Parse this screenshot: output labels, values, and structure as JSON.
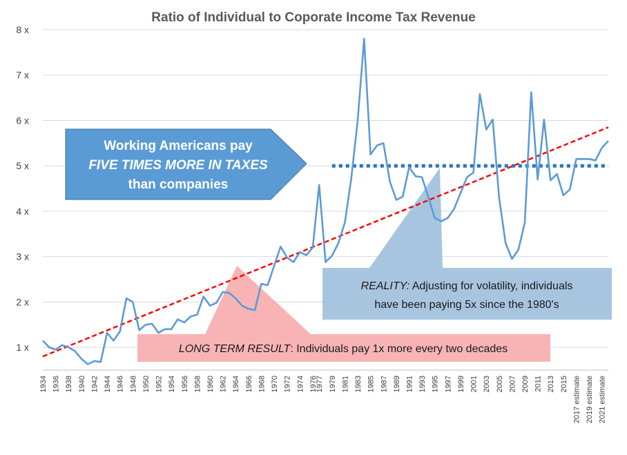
{
  "chart_data": {
    "type": "line",
    "title": "Ratio of Individual to Coporate Income Tax Revenue",
    "xlabel": "",
    "ylabel": "",
    "ylim": [
      0.5,
      8
    ],
    "yticks": [
      {
        "value": 1,
        "label": "1 x"
      },
      {
        "value": 2,
        "label": "2 x"
      },
      {
        "value": 3,
        "label": "3 x"
      },
      {
        "value": 4,
        "label": "4 x"
      },
      {
        "value": 5,
        "label": "5 x"
      },
      {
        "value": 6,
        "label": "6 x"
      },
      {
        "value": 7,
        "label": "7 x"
      },
      {
        "value": 8,
        "label": "8 x"
      }
    ],
    "grid": true,
    "categories": [
      "1934",
      "1935",
      "1936",
      "1937",
      "1938",
      "1939",
      "1940",
      "1941",
      "1942",
      "1943",
      "1944",
      "1945",
      "1946",
      "1947",
      "1948",
      "1949",
      "1950",
      "1951",
      "1952",
      "1953",
      "1954",
      "1955",
      "1956",
      "1957",
      "1958",
      "1959",
      "1960",
      "1961",
      "1962",
      "1963",
      "1964",
      "1965",
      "1966",
      "1967",
      "1968",
      "1969",
      "1970",
      "1971",
      "1972",
      "1973",
      "1974",
      "1975",
      "1976",
      "1977",
      "1978",
      "1979",
      "1980",
      "1981",
      "1982",
      "1983",
      "1984",
      "1985",
      "1986",
      "1987",
      "1988",
      "1989",
      "1990",
      "1991",
      "1992",
      "1993",
      "1994",
      "1995",
      "1996",
      "1997",
      "1998",
      "1999",
      "2000",
      "2001",
      "2002",
      "2003",
      "2004",
      "2005",
      "2006",
      "2007",
      "2008",
      "2009",
      "2010",
      "2011",
      "2012",
      "2013",
      "2014",
      "2015",
      "2016",
      "2017 estimate",
      "2018 estimate",
      "2019 estimate",
      "2020 estimate",
      "2021 estimate",
      "2022 estimate"
    ],
    "tick_labels": [
      "1934",
      "1936",
      "1938",
      "1940",
      "1942",
      "1944",
      "1946",
      "1948",
      "1950",
      "1952",
      "1954",
      "1956",
      "1958",
      "1960",
      "1962",
      "1964",
      "1966",
      "1968",
      "1970",
      "1972",
      "1974",
      "1976",
      "1977",
      "1979",
      "1981",
      "1983",
      "1985",
      "1987",
      "1989",
      "1991",
      "1993",
      "1995",
      "1997",
      "1999",
      "2001",
      "2003",
      "2005",
      "2007",
      "2009",
      "2011",
      "2013",
      "2015",
      "2017 estimate",
      "2019 estimate",
      "2021 estimate"
    ],
    "series": [
      {
        "name": "",
        "color": "#5b9bd5",
        "values": [
          1.15,
          1.0,
          0.95,
          1.05,
          1.0,
          0.92,
          0.75,
          0.63,
          0.7,
          0.68,
          1.32,
          1.15,
          1.35,
          2.08,
          2.0,
          1.38,
          1.5,
          1.52,
          1.32,
          1.4,
          1.4,
          1.62,
          1.55,
          1.68,
          1.72,
          2.12,
          1.92,
          1.98,
          2.22,
          2.2,
          2.08,
          1.92,
          1.85,
          1.82,
          2.4,
          2.37,
          2.8,
          3.22,
          2.98,
          2.88,
          3.1,
          3.03,
          3.2,
          4.58,
          2.88,
          3.02,
          3.3,
          3.75,
          4.72,
          6.0,
          7.8,
          5.25,
          5.45,
          5.5,
          4.65,
          4.25,
          4.32,
          4.97,
          4.77,
          4.75,
          4.3,
          3.85,
          3.78,
          3.85,
          4.05,
          4.4,
          4.75,
          4.85,
          6.58,
          5.8,
          6.02,
          4.3,
          3.3,
          2.95,
          3.15,
          3.75,
          6.62,
          4.7,
          6.02,
          4.68,
          4.82,
          4.35,
          4.48,
          5.15,
          5.15,
          5.15,
          5.12,
          5.4,
          5.55
        ]
      }
    ],
    "reference_lines": [
      {
        "kind": "trend",
        "color": "#ff0000",
        "from": {
          "x": "1934",
          "y": 0.8
        },
        "to": {
          "x": "2022 estimate",
          "y": 5.85
        }
      },
      {
        "kind": "level",
        "color": "#2e75b6",
        "from": {
          "x": "1979",
          "y": 5.0
        },
        "to": {
          "x": "2022 estimate",
          "y": 5.0
        }
      }
    ],
    "annotations": {
      "blue_arrow": {
        "color": "#5b9bd5",
        "line1": "Working Americans pay",
        "line2": "FIVE TIMES MORE IN TAXES",
        "line3": "than companies"
      },
      "reality": {
        "color": "#a8c5e0",
        "label_italic": "REALITY:",
        "text1": "  Adjusting for volatility, individuals",
        "text2": "have been paying 5x since the 1980's"
      },
      "long_term": {
        "color": "#f8b4b4",
        "label_italic": "LONG TERM RESULT",
        "text": ":  Individuals pay 1x more every two decades"
      }
    }
  }
}
